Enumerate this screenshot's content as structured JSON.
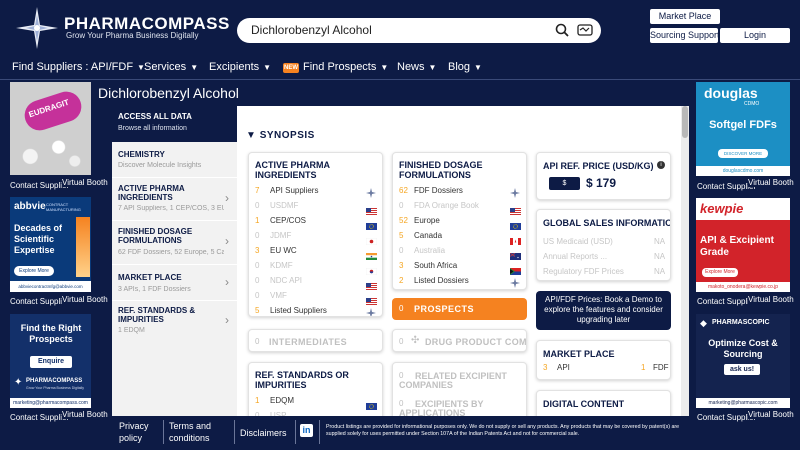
{
  "header": {
    "logo_name": "PHARMACOMPASS",
    "logo_tagline": "Grow Your Pharma Business Digitally",
    "search_value": "Dichlorobenzyl Alcohol",
    "market_place": "Market Place",
    "sourcing_support": "Sourcing Support",
    "login": "Login"
  },
  "nav": {
    "find_suppliers": "Find Suppliers : API/FDF",
    "services": "Services",
    "excipients": "Excipients",
    "new_badge": "NEW",
    "find_prospects": "Find Prospects",
    "news": "News",
    "blog": "Blog"
  },
  "title": "Dichlorobenzyl Alcohol",
  "left_ads": {
    "eudragit_text": "EUDRAGIT",
    "label_supplier": "Contact Supplier",
    "label_booth": "Virtual Booth",
    "abbvie_brand": "abbvie",
    "abbvie_sub": "CONTRACT MANUFACTURING",
    "abbvie_headline": "Decades of Scientific Expertise",
    "abbvie_cta": "Explore More",
    "abbvie_url": "abbviecontractmfg@abbvie.com",
    "pc_headline": "Find the Right Prospects",
    "pc_cta": "Enquire now!",
    "pc_brand": "PHARMACOMPASS",
    "pc_tag": "Grow Your Pharma Business Digitally",
    "pc_email": "marketing@pharmacompass.com"
  },
  "right_ads": {
    "douglas_brand": "douglas",
    "douglas_sub": "CDMO",
    "douglas_headline": "Softgel FDFs",
    "douglas_cta": "DISCOVER MORE",
    "douglas_url": "douglascdmo.com",
    "kewpie_brand": "kewpie",
    "kewpie_headline": "API & Excipient Grade",
    "kewpie_cta": "Explore More",
    "kewpie_email": "makoto_onodera@kewpie.co.jp",
    "ps_brand": "PHARMASCOPIC",
    "ps_headline": "Optimize Cost & Sourcing",
    "ps_cta": "ask us!",
    "ps_email": "marketing@pharmascopic.com",
    "label_supplier": "Contact Supplier",
    "label_booth": "Virtual Booth"
  },
  "menu": {
    "access_title": "ACCESS ALL DATA",
    "access_sub": "Browse all information",
    "chemistry_title": "CHEMISTRY",
    "chemistry_sub": "Discover Molecule Insights",
    "api_title_1": "ACTIVE PHARMA",
    "api_title_2": "INGREDIENTS",
    "api_sub": "7 API Suppliers, 1 CEP/COS, 3 EU W",
    "fdf_title_1": "FINISHED DOSAGE",
    "fdf_title_2": "FORMULATIONS",
    "fdf_sub": "62 FDF Dossiers, 52 Europe, 5 Cana",
    "mp_title": "MARKET PLACE",
    "mp_sub": "3 APIs, 1 FDF Dossiers",
    "ref_title_1": "REF. STANDARDS &",
    "ref_title_2": "IMPURITIES",
    "ref_sub": "1 EDQM"
  },
  "synopsis": "SYNOPSIS",
  "api_card": {
    "title_1": "ACTIVE PHARMA",
    "title_2": "INGREDIENTS",
    "rows": [
      {
        "n": "7",
        "label": "API Suppliers",
        "icon": "globe-icon",
        "dim": false
      },
      {
        "n": "0",
        "label": "USDMF",
        "icon": "us-flag-icon",
        "dim": true
      },
      {
        "n": "1",
        "label": "CEP/COS",
        "icon": "eu-flag-icon",
        "dim": false
      },
      {
        "n": "0",
        "label": "JDMF",
        "icon": "japan-flag-icon",
        "dim": true
      },
      {
        "n": "3",
        "label": "EU WC",
        "icon": "india-flag-icon",
        "dim": false
      },
      {
        "n": "0",
        "label": "KDMF",
        "icon": "korea-flag-icon",
        "dim": true
      },
      {
        "n": "0",
        "label": "NDC API",
        "icon": "us-flag-icon",
        "dim": true
      },
      {
        "n": "0",
        "label": "VMF",
        "icon": "us-flag-icon",
        "dim": true
      },
      {
        "n": "5",
        "label": "Listed Suppliers",
        "icon": "globe-icon",
        "dim": false
      }
    ]
  },
  "fdf_card": {
    "title_1": "FINISHED DOSAGE",
    "title_2": "FORMULATIONS",
    "rows": [
      {
        "n": "62",
        "label": "FDF Dossiers",
        "icon": "globe-icon",
        "dim": false
      },
      {
        "n": "0",
        "label": "FDA Orange Book",
        "icon": "us-flag-icon",
        "dim": true
      },
      {
        "n": "52",
        "label": "Europe",
        "icon": "eu-flag-icon",
        "dim": false
      },
      {
        "n": "5",
        "label": "Canada",
        "icon": "canada-flag-icon",
        "dim": false
      },
      {
        "n": "0",
        "label": "Australia",
        "icon": "australia-flag-icon",
        "dim": true
      },
      {
        "n": "3",
        "label": "South Africa",
        "icon": "south-africa-flag-icon",
        "dim": false
      },
      {
        "n": "2",
        "label": "Listed Dossiers",
        "icon": "globe-icon",
        "dim": false
      }
    ]
  },
  "prospects": {
    "n": "0",
    "label": "PROSPECTS"
  },
  "intermediates": {
    "n": "0",
    "label": "INTERMEDIATES"
  },
  "drug_product": {
    "n": "0",
    "label": "DRUG PRODUCT COMP..."
  },
  "ref_card": {
    "title_1": "REF. STANDARDS OR",
    "title_2": "IMPURITIES",
    "rows": [
      {
        "n": "1",
        "label": "EDQM",
        "icon": "eu-flag-icon",
        "dim": false
      },
      {
        "n": "0",
        "label": "USP",
        "icon": "us-flag-icon",
        "dim": true
      }
    ]
  },
  "excipient": {
    "n1": "0",
    "l1a": "RELATED EXCIPIENT",
    "l1b": "COMPANIES",
    "n2": "0",
    "l2a": "EXCIPIENTS BY",
    "l2b": "APPLICATIONS"
  },
  "price_card": {
    "title": "API REF. PRICE (USD/KG)",
    "currency": "$",
    "price": "$ 179"
  },
  "sales_card": {
    "title": "GLOBAL SALES INFORMATION",
    "rows": [
      {
        "label": "US Medicaid (USD)",
        "value": "NA"
      },
      {
        "label": "Annual Reports ...",
        "value": "NA"
      },
      {
        "label": "Regulatory FDF Prices",
        "value": "NA"
      }
    ]
  },
  "demo_card": {
    "text": "API/FDF Prices: Book a Demo to explore the features and consider upgrading later"
  },
  "market_card": {
    "title": "MARKET PLACE",
    "api_n": "3",
    "api_label": "API",
    "fdf_n": "1",
    "fdf_label": "FDF"
  },
  "digital_card": {
    "title": "DIGITAL CONTENT"
  },
  "footer": {
    "privacy_1": "Privacy",
    "privacy_2": "policy",
    "terms_1": "Terms and",
    "terms_2": "conditions",
    "disclaimers": "Disclaimers",
    "linkedin": "in",
    "notice": "Product listings are provided for informational purposes only. We do not supply or sell any products. Any products that may be covered by patent(s) are supplied solely for uses permitted under Section 107A of the Indian Patents Act and not for commercial sale."
  },
  "colors": {
    "navy": "#0d1b45",
    "orange": "#f58220",
    "accent_num": "#f5a623"
  }
}
